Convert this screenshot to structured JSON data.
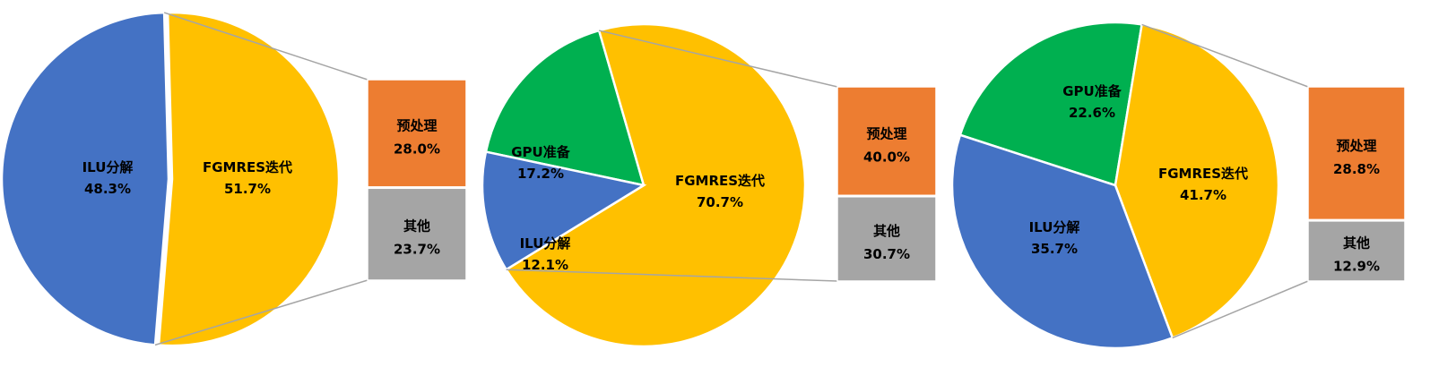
{
  "colors": {
    "blue": "#4472C4",
    "yellow": "#FFC000",
    "green": "#00B050",
    "orange": "#ED7D31",
    "gray": "#A5A5A5",
    "connector": "#A5A5A5"
  },
  "chart_data": [
    {
      "type": "bar-of-pie",
      "pie": [
        {
          "name": "ILU分解",
          "label": "48.3%",
          "value": 48.3,
          "color": "#4472C4"
        },
        {
          "name": "FGMRES迭代",
          "label": "51.7%",
          "value": 51.7,
          "color": "#FFC000"
        }
      ],
      "exploded_slice": "FGMRES迭代",
      "bar": [
        {
          "name": "预处理",
          "label": "28.0%",
          "value": 28.0,
          "color": "#ED7D31"
        },
        {
          "name": "其他",
          "label": "23.7%",
          "value": 23.7,
          "color": "#A5A5A5"
        }
      ]
    },
    {
      "type": "bar-of-pie",
      "pie": [
        {
          "name": "GPU准备",
          "label": "17.2%",
          "value": 17.2,
          "color": "#00B050"
        },
        {
          "name": "FGMRES迭代",
          "label": "70.7%",
          "value": 70.7,
          "color": "#FFC000"
        },
        {
          "name": "ILU分解",
          "label": "12.1%",
          "value": 12.1,
          "color": "#4472C4"
        }
      ],
      "exploded_slice": "FGMRES迭代",
      "bar": [
        {
          "name": "预处理",
          "label": "40.0%",
          "value": 40.0,
          "color": "#ED7D31"
        },
        {
          "name": "其他",
          "label": "30.7%",
          "value": 30.7,
          "color": "#A5A5A5"
        }
      ]
    },
    {
      "type": "bar-of-pie",
      "pie": [
        {
          "name": "GPU准备",
          "label": "22.6%",
          "value": 22.6,
          "color": "#00B050"
        },
        {
          "name": "FGMRES迭代",
          "label": "41.7%",
          "value": 41.7,
          "color": "#FFC000"
        },
        {
          "name": "ILU分解",
          "label": "35.7%",
          "value": 35.7,
          "color": "#4472C4"
        }
      ],
      "exploded_slice": "FGMRES迭代",
      "bar": [
        {
          "name": "预处理",
          "label": "28.8%",
          "value": 28.8,
          "color": "#ED7D31"
        },
        {
          "name": "其他",
          "label": "12.9%",
          "value": 12.9,
          "color": "#A5A5A5"
        }
      ]
    }
  ]
}
